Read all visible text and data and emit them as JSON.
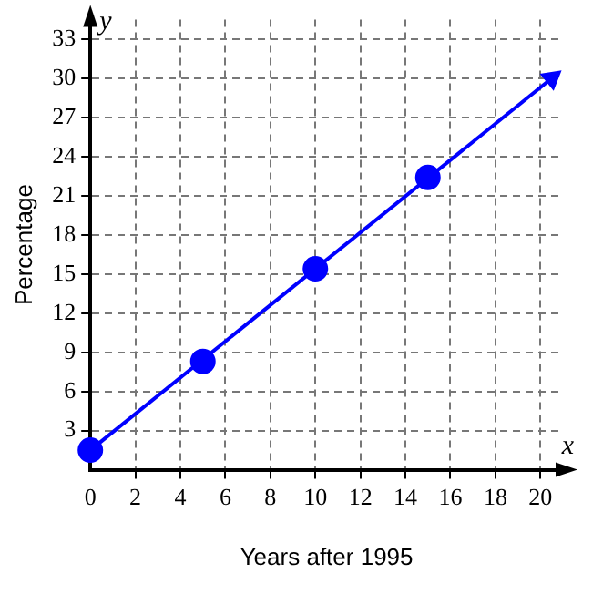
{
  "chart_data": {
    "type": "line",
    "xlabel": "Years after 1995",
    "ylabel": "Percentage",
    "annotations": [
      "x",
      "y"
    ],
    "series": [
      {
        "color": "#0000ff",
        "x": [
          0,
          20.5
        ],
        "values": [
          1.5,
          30
        ]
      },
      {
        "type": "scatter",
        "color": "#0000ff",
        "x": [
          0,
          5,
          10,
          15
        ],
        "values": [
          1.5,
          8.3,
          15.4,
          22.4
        ],
        "marker": "circle"
      }
    ],
    "xlim": [
      0,
      21
    ],
    "ylim": [
      0,
      34.5
    ],
    "xticks": [
      0,
      2,
      4,
      6,
      8,
      10,
      12,
      14,
      16,
      18,
      20
    ],
    "yticks": [
      3,
      6,
      9,
      12,
      15,
      18,
      21,
      24,
      27,
      30,
      33
    ],
    "grid": true,
    "legend": false
  }
}
